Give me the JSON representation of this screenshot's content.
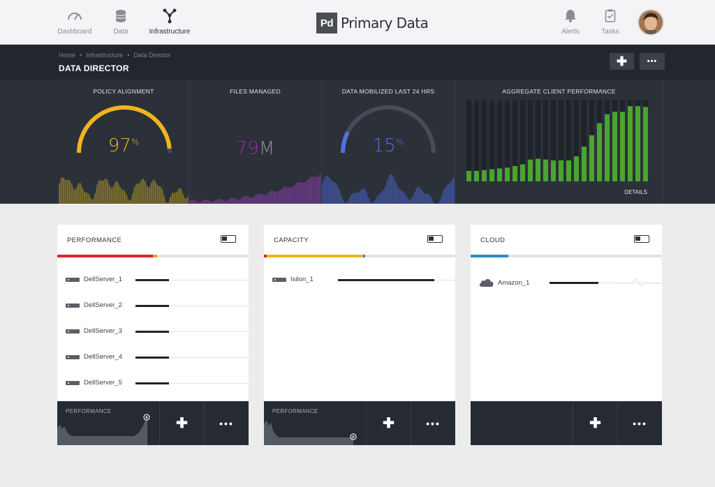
{
  "nav": {
    "left": [
      {
        "label": "Dashboard",
        "icon": "gauge-icon"
      },
      {
        "label": "Data",
        "icon": "database-icon"
      },
      {
        "label": "Infrastructure",
        "icon": "network-icon",
        "active": true
      }
    ],
    "brand": {
      "logo": "Pd",
      "name": "Primary Data"
    },
    "right": [
      {
        "label": "Alerts",
        "icon": "bell-icon"
      },
      {
        "label": "Tasks",
        "icon": "clipboard-icon"
      }
    ]
  },
  "header": {
    "breadcrumb": [
      "Home",
      "Infrastructure",
      "Data Director"
    ],
    "title": "DATA DIRECTOR",
    "add_label": "✚",
    "more_label": "•••"
  },
  "kpis": {
    "policy": {
      "title": "POLICY ALIGNMENT",
      "value": "97",
      "unit": "%",
      "fraction": 0.97
    },
    "files": {
      "title": "FILES MANAGED",
      "value": "79",
      "unit": "M"
    },
    "mobilized": {
      "title": "DATA MOBILIZED LAST 24 HRS",
      "value": "15",
      "unit": "%",
      "fraction": 0.15
    },
    "aggregate": {
      "title": "AGGREGATE CLIENT PERFORMANCE",
      "details": "DETAILS",
      "levels": [
        0.13,
        0.13,
        0.14,
        0.15,
        0.16,
        0.17,
        0.19,
        0.21,
        0.27,
        0.28,
        0.27,
        0.26,
        0.26,
        0.26,
        0.31,
        0.43,
        0.57,
        0.72,
        0.83,
        0.86,
        0.86,
        0.93,
        0.93,
        0.92
      ]
    }
  },
  "cards": [
    {
      "title": "PERFORMANCE",
      "rows": [
        {
          "name": "DellServer_1",
          "level": 0.18
        },
        {
          "name": "DellServer_2",
          "level": 0.18
        },
        {
          "name": "DellServer_3",
          "level": 0.18
        },
        {
          "name": "DellServer_4",
          "level": 0.18
        },
        {
          "name": "DellServer_5",
          "level": 0.18
        }
      ],
      "footer_label": "PERFORMANCE",
      "add_label": "✚",
      "more_label": "•••"
    },
    {
      "title": "CAPACITY",
      "rows": [
        {
          "name": "Isilon_1",
          "level": 0.49
        }
      ],
      "footer_label": "PERFORMANCE",
      "add_label": "✚",
      "more_label": "•••"
    },
    {
      "title": "CLOUD",
      "rows": [
        {
          "name": "Amazon_1",
          "level": 0.27
        }
      ],
      "footer_label": "",
      "add_label": "✚",
      "more_label": "•••"
    }
  ],
  "colors": {
    "yellow": "#f0b41c",
    "purple": "#9b2aa3",
    "blue": "#5270e0",
    "green": "#49a52f",
    "red": "#d8262f",
    "cloud_blue": "#2a8bc0"
  }
}
